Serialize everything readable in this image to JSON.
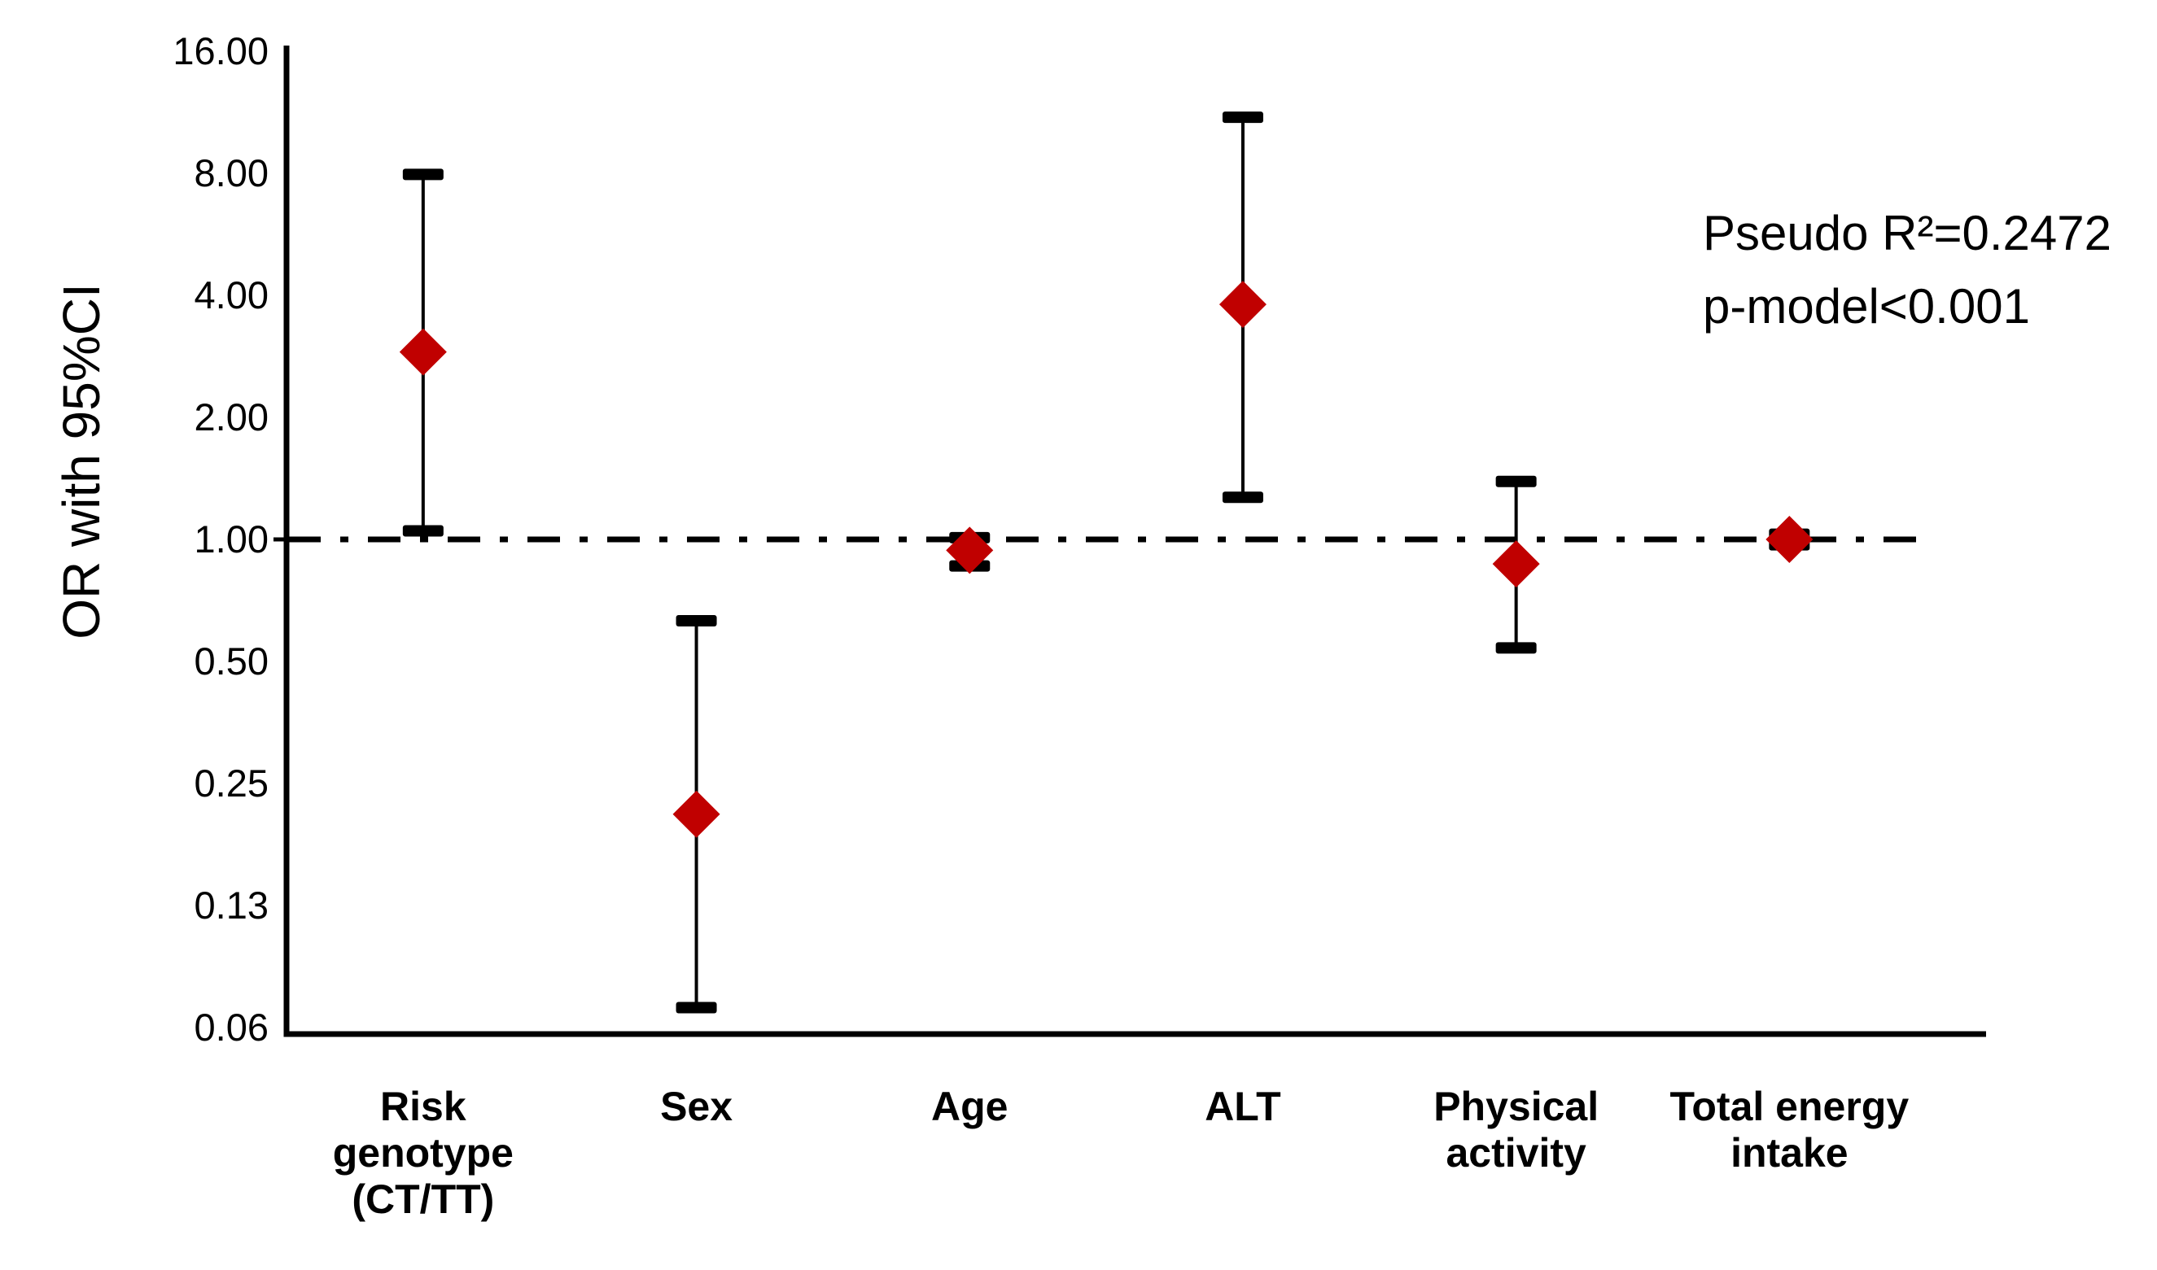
{
  "figure": {
    "background": "#ffffff",
    "text_color": "#000000"
  },
  "chart_data": {
    "type": "scatter",
    "subtype": "forest-plot-error-bars",
    "title": "",
    "xlabel": "",
    "ylabel": "OR with 95%CI",
    "y_scale": "log2",
    "ylim": [
      0.0625,
      16
    ],
    "grid": false,
    "legend": "none",
    "marker": "diamond",
    "marker_color": "#c00000",
    "line_color": "#000000",
    "reference_line": {
      "value": 1.0,
      "style": "dash-dot"
    },
    "yticks": [
      {
        "label": "16.00",
        "value": 16
      },
      {
        "label": "8.00",
        "value": 8
      },
      {
        "label": "4.00",
        "value": 4
      },
      {
        "label": "2.00",
        "value": 2
      },
      {
        "label": "1.00",
        "value": 1
      },
      {
        "label": "0.50",
        "value": 0.5
      },
      {
        "label": "0.25",
        "value": 0.25
      },
      {
        "label": "0.13",
        "value": 0.125
      },
      {
        "label": "0.06",
        "value": 0.0625
      }
    ],
    "categories": [
      "Risk genotype (CT/TT)",
      "Sex",
      "Age",
      "ALT",
      "Physical activity",
      "Total energy intake"
    ],
    "category_label_lines": [
      [
        "Risk",
        "genotype",
        "(CT/TT)"
      ],
      [
        "Sex"
      ],
      [
        "Age"
      ],
      [
        "ALT"
      ],
      [
        "Physical",
        "activity"
      ],
      [
        "Total energy",
        "intake"
      ]
    ],
    "series": [
      {
        "name": "OR with 95%CI",
        "points": [
          {
            "category": "Risk genotype (CT/TT)",
            "or": 2.9,
            "ci_low": 1.05,
            "ci_high": 7.95
          },
          {
            "category": "Sex",
            "or": 0.21,
            "ci_low": 0.07,
            "ci_high": 0.63
          },
          {
            "category": "Age",
            "or": 0.94,
            "ci_low": 0.86,
            "ci_high": 1.01
          },
          {
            "category": "ALT",
            "or": 3.8,
            "ci_low": 1.27,
            "ci_high": 11.0
          },
          {
            "category": "Physical activity",
            "or": 0.87,
            "ci_low": 0.54,
            "ci_high": 1.39
          },
          {
            "category": "Total energy intake",
            "or": 1.0,
            "ci_low": 0.97,
            "ci_high": 1.03
          }
        ]
      }
    ],
    "annotations": [
      "Pseudo R²=0.2472",
      "p-model<0.001"
    ]
  }
}
